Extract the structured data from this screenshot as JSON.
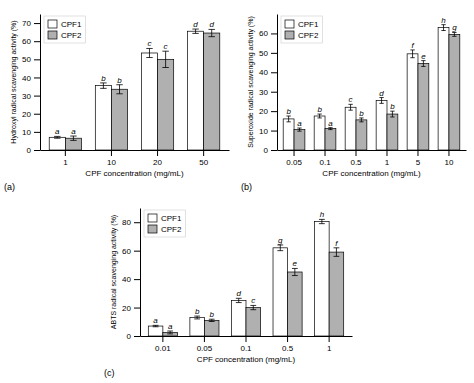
{
  "chart_data": [
    {
      "type": "bar",
      "title": "(a)",
      "xlabel": "CPF concentration (mg/mL)",
      "ylabel": "Hydroxyl radical scavenging activity (%)",
      "categories": [
        "1",
        "10",
        "20",
        "50"
      ],
      "series": [
        {
          "name": "CPF1",
          "color": "white",
          "values": [
            7.0,
            35.5,
            53.5,
            65.5
          ],
          "errors": [
            0.5,
            1.5,
            2.5,
            1.2
          ],
          "annotations": [
            "a",
            "b",
            "c",
            "d"
          ]
        },
        {
          "name": "CPF2",
          "color": "#b0b0b0",
          "values": [
            6.5,
            33.5,
            50.0,
            64.5
          ],
          "errors": [
            1.2,
            2.5,
            4.5,
            2.0
          ],
          "annotations": [
            "a",
            "b",
            "c",
            "d"
          ]
        }
      ],
      "ylim": [
        0,
        75
      ],
      "yticks": [
        0,
        10,
        20,
        30,
        40,
        50,
        60,
        70
      ],
      "legend": "upper left"
    },
    {
      "type": "bar",
      "title": "(b)",
      "xlabel": "CPF concentration (mg/mL)",
      "ylabel": "Superoxide radical scavenging activity (%)",
      "categories": [
        "0.05",
        "0.1",
        "0.5",
        "1",
        "5",
        "10"
      ],
      "series": [
        {
          "name": "CPF1",
          "color": "white",
          "values": [
            16.0,
            17.5,
            22.0,
            25.5,
            49.5,
            63.0
          ],
          "errors": [
            1.5,
            1.0,
            1.5,
            1.5,
            2.0,
            1.5
          ],
          "annotations": [
            "b",
            "b",
            "c",
            "d",
            "f",
            "h"
          ]
        },
        {
          "name": "CPF2",
          "color": "#b0b0b0",
          "values": [
            10.5,
            11.0,
            15.5,
            18.5,
            44.5,
            59.5
          ],
          "errors": [
            0.8,
            0.5,
            1.0,
            1.5,
            1.5,
            1.0
          ],
          "annotations": [
            "a",
            "a",
            "b",
            "b",
            "e",
            "g"
          ]
        }
      ],
      "ylim": [
        0,
        70
      ],
      "yticks": [
        0,
        10,
        20,
        30,
        40,
        50,
        60
      ],
      "legend": "upper left"
    },
    {
      "type": "bar",
      "title": "(c)",
      "xlabel": "CPF concentration (mg/mL)",
      "ylabel": "ABTS radical scavenging activity (%)",
      "categories": [
        "0.01",
        "0.05",
        "0.1",
        "0.5",
        "1"
      ],
      "series": [
        {
          "name": "CPF1",
          "color": "white",
          "values": [
            7.0,
            13.0,
            25.0,
            62.0,
            80.5
          ],
          "errors": [
            0.5,
            1.0,
            1.5,
            2.0,
            1.5
          ],
          "annotations": [
            "a",
            "b",
            "d",
            "g",
            "h"
          ]
        },
        {
          "name": "CPF2",
          "color": "#b0b0b0",
          "values": [
            2.5,
            11.0,
            20.0,
            45.0,
            59.0
          ],
          "errors": [
            1.0,
            0.8,
            1.5,
            2.5,
            3.0
          ],
          "annotations": [
            "a",
            "b",
            "c",
            "e",
            "f"
          ]
        }
      ],
      "ylim": [
        0,
        90
      ],
      "yticks": [
        0,
        20,
        40,
        60,
        80
      ],
      "legend": "upper left"
    }
  ]
}
